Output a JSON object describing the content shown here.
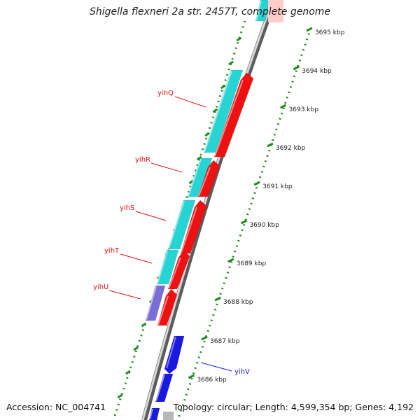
{
  "title": "Shigella flexneri 2a str. 2457T, complete genome",
  "footer": {
    "accession": "Accession: NC_004741",
    "topology": "Topology: circular; Length: 4,599,354 bp; Genes: 4,192"
  },
  "colors": {
    "forward_gene": "#26d4d4",
    "reverse_gene": "#ee1111",
    "reverse_gene_label": "#dd1111",
    "other_gene": "#1a1adf",
    "other_gene_label": "#1a1adf",
    "pseudo_gene": "#7a6ed6",
    "tick": "#228b22"
  },
  "scale_labels": [
    "3695 kbp",
    "3694 kbp",
    "3693 kbp",
    "3692 kbp",
    "3691 kbp",
    "3690 kbp",
    "3689 kbp",
    "3688 kbp",
    "3687 kbp",
    "3686 kbp"
  ],
  "genes": [
    {
      "name": "yihQ"
    },
    {
      "name": "yihR"
    },
    {
      "name": "yihS"
    },
    {
      "name": "yihT"
    },
    {
      "name": "yihU"
    },
    {
      "name": "yihV"
    }
  ]
}
